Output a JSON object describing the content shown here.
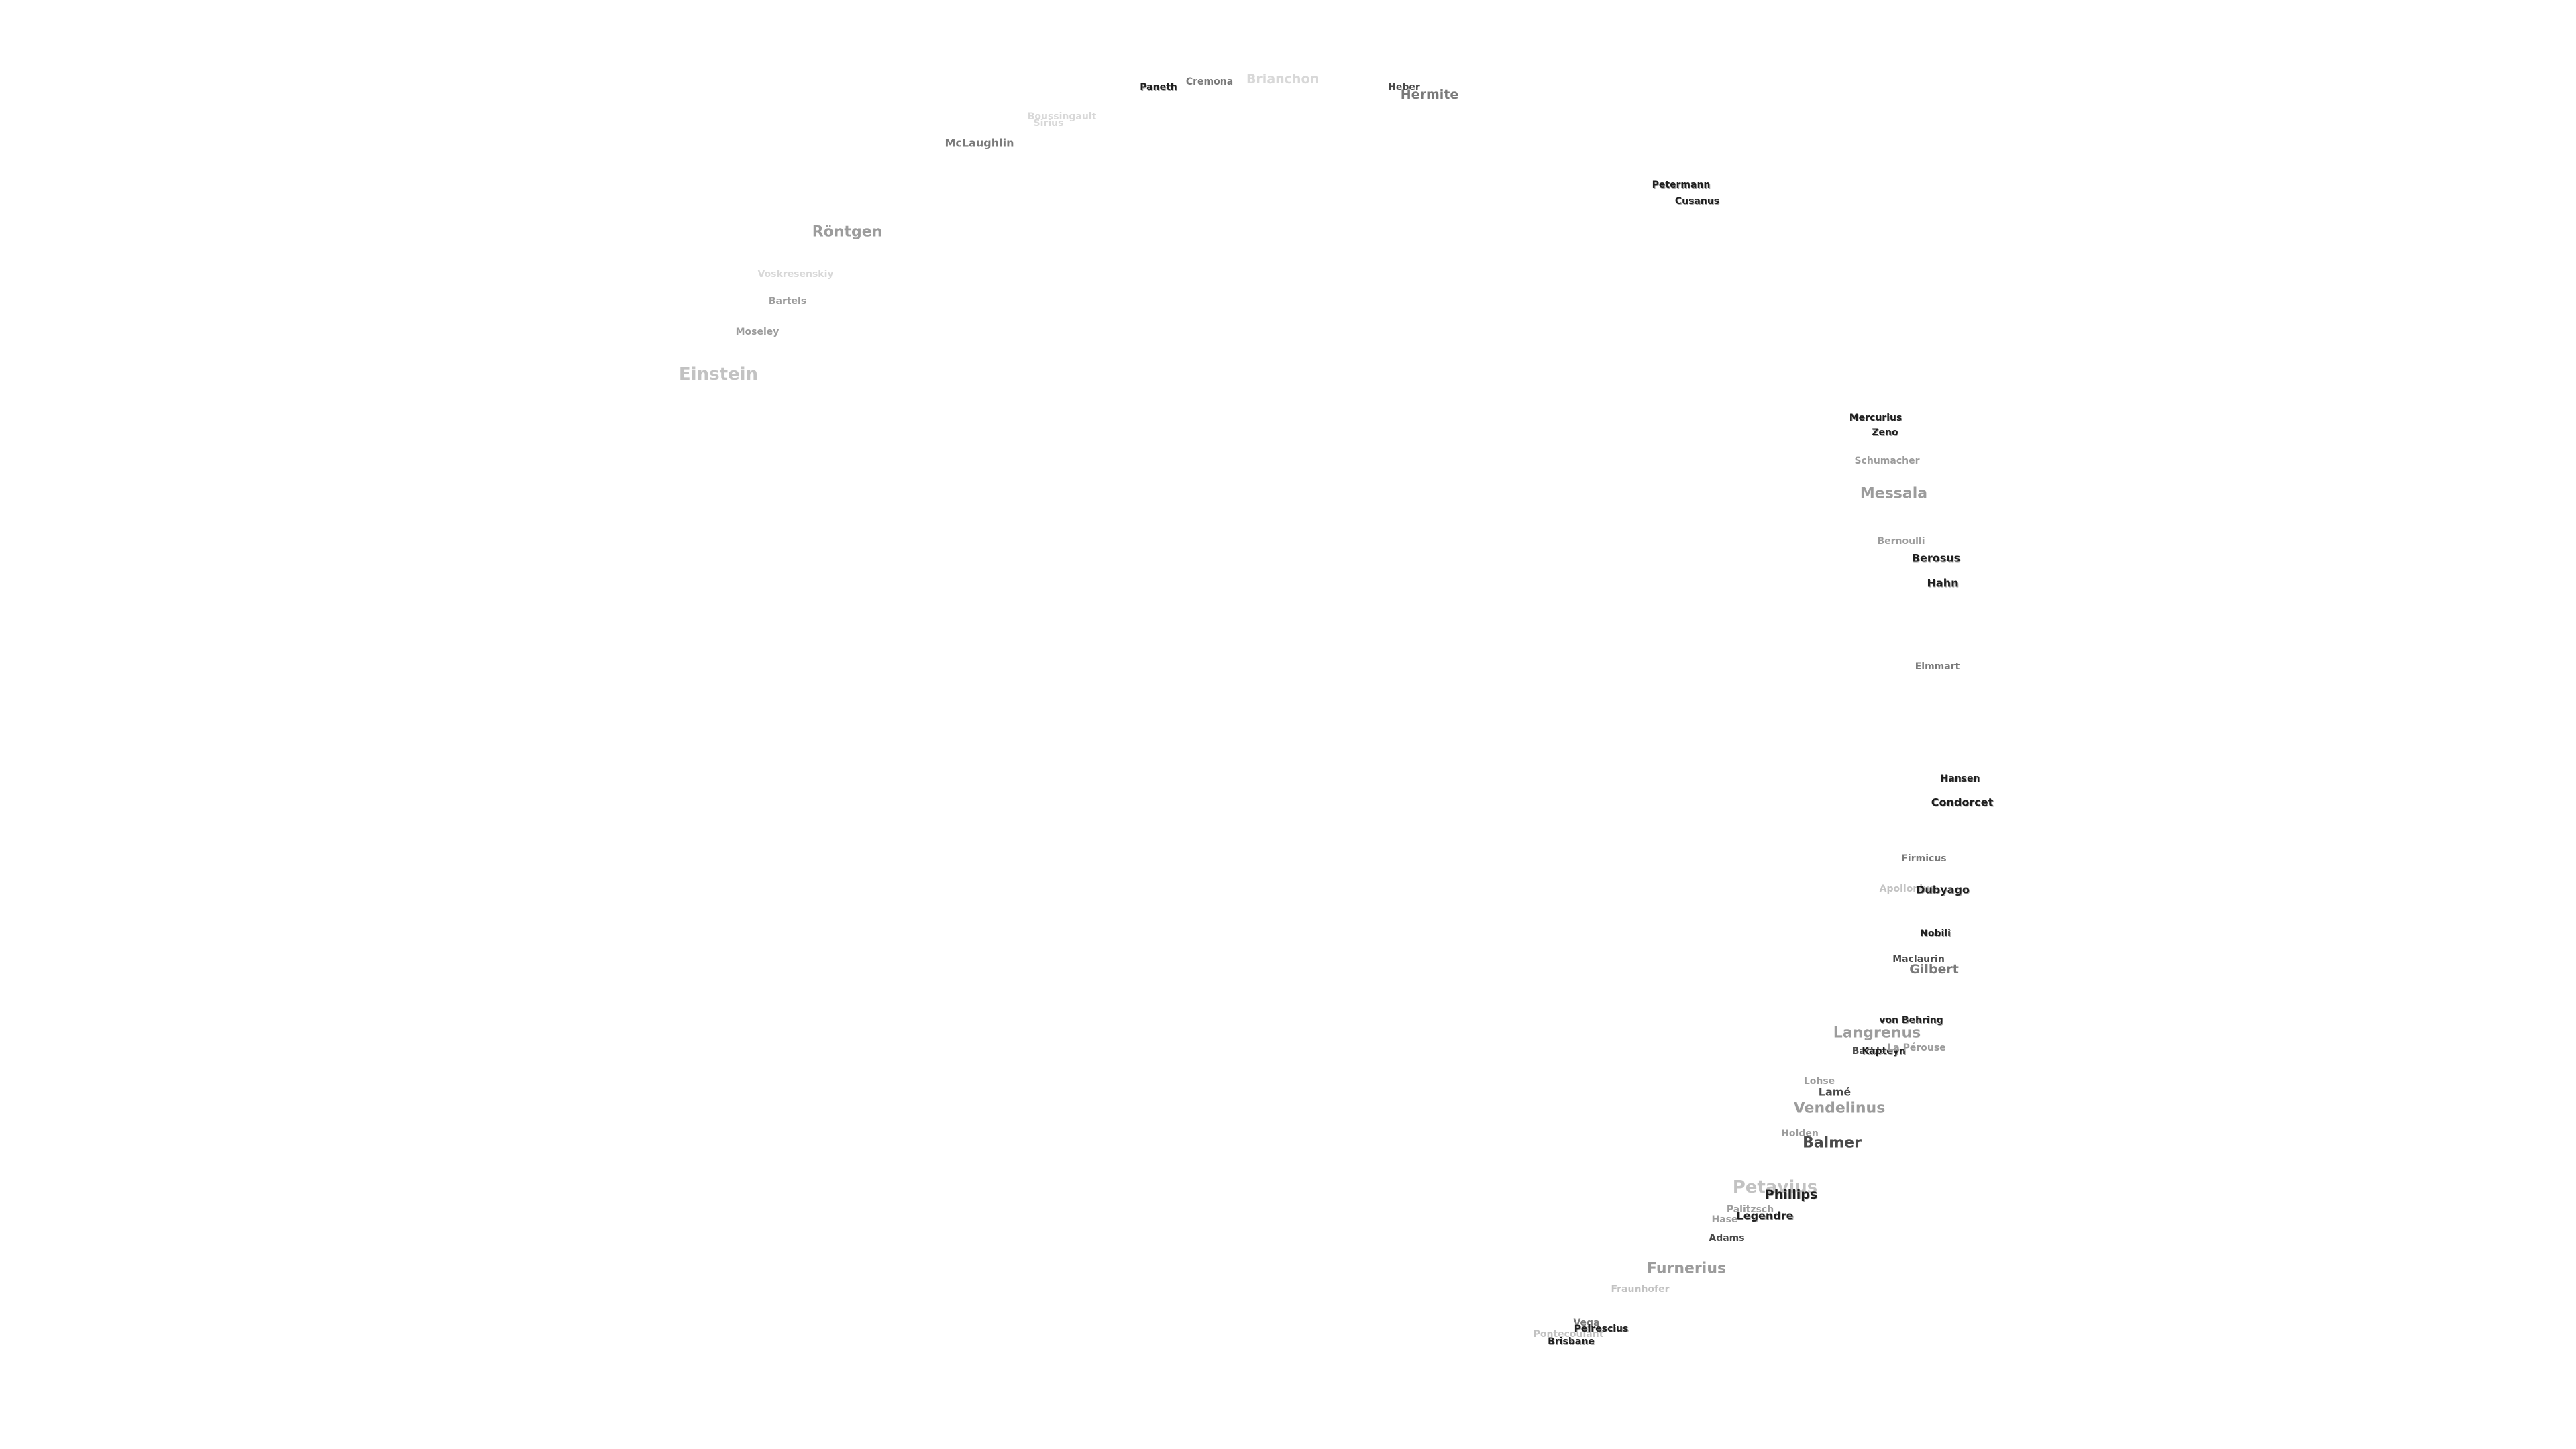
{
  "labels": {
    "paneth": "Paneth",
    "cremona": "Cremona",
    "brianchon": "Brianchon",
    "heber": "Heber",
    "hermite": "Hermite",
    "boussingault": "Boussingault",
    "sirius": "Sirius",
    "mclaughlin": "McLaughlin",
    "petermann": "Petermann",
    "cusanus": "Cusanus",
    "rontgen": "Röntgen",
    "voskresenskiy": "Voskresenskiy",
    "bartels": "Bartels",
    "moseley": "Moseley",
    "einstein": "Einstein",
    "mercurius": "Mercurius",
    "zeno": "Zeno",
    "schumacher": "Schumacher",
    "messala": "Messala",
    "bernoulli": "Bernoulli",
    "berosus": "Berosus",
    "hahn": "Hahn",
    "elmmart": "Elmmart",
    "hansen": "Hansen",
    "condorcet": "Condorcet",
    "firmicus": "Firmicus",
    "apollonius": "Apollonius",
    "dubyago": "Dubyago",
    "nobili": "Nobili",
    "maclaurin": "Maclaurin",
    "gilbert": "Gilbert",
    "von_behring": "von Behring",
    "langrenus": "Langrenus",
    "barkla": "Barkla",
    "kapteyn": "Kapteyn",
    "la_perouse": "La Pérouse",
    "lohse": "Lohse",
    "lame": "Lamé",
    "vendelinus": "Vendelinus",
    "holden": "Holden",
    "balmer": "Balmer",
    "petavius": "Petavius",
    "phillips": "Phillips",
    "palitzsch": "Palitzsch",
    "legendre": "Legendre",
    "hase": "Hase",
    "adams": "Adams",
    "furnerius": "Furnerius",
    "fraunhofer": "Fraunhofer",
    "vega": "Vega",
    "pontecoulant": "Pontecoulant",
    "peirescius": "Peirescius",
    "brisbane": "Brisbane"
  }
}
